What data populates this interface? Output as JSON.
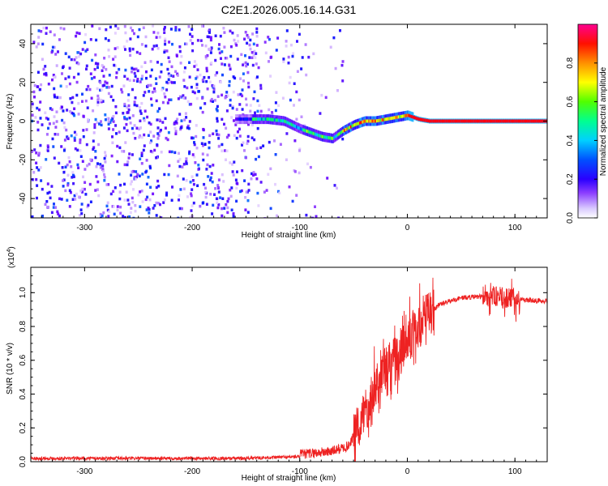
{
  "title": "C2E1.2026.005.16.14.G31",
  "chart_data": [
    {
      "type": "heatmap",
      "xlabel": "Height of straight line (km)",
      "ylabel": "Frequency (Hz)",
      "xlim": [
        -350,
        130
      ],
      "ylim": [
        -50,
        50
      ],
      "xticks": [
        -300,
        -200,
        -100,
        0,
        100
      ],
      "yticks": [
        -40,
        -20,
        0,
        20,
        40
      ],
      "colorbar": {
        "label": "Normalized spectral amplitude",
        "range": [
          0,
          1
        ],
        "ticks": [
          "0.0",
          "0.2",
          "0.4",
          "0.6",
          "0.8"
        ],
        "colors": [
          "#ffffff",
          "#6a00ff",
          "#0000ff",
          "#00ccff",
          "#00ff66",
          "#b0ff00",
          "#ffff00",
          "#ff8800",
          "#ff0000",
          "#ff00aa"
        ]
      },
      "ridge": {
        "x": [
          -145,
          -130,
          -115,
          -100,
          -90,
          -80,
          -70,
          -60,
          -50,
          -40,
          -30,
          -20,
          -10,
          0,
          10,
          20,
          40,
          60,
          80,
          100,
          130
        ],
        "y": [
          1,
          1,
          0,
          -4,
          -6,
          -8,
          -9,
          -5,
          -2,
          0,
          0,
          1,
          2,
          3,
          1,
          0,
          0,
          0,
          0,
          0,
          0
        ]
      }
    },
    {
      "type": "line",
      "series": [
        {
          "name": "SNR",
          "color": "#ee2222"
        }
      ],
      "xlabel": "Height of straight line (km)",
      "ylabel": "SNR (10 * v/v)",
      "ylabel_multiplier": "(x10",
      "ylabel_exponent": "4",
      "xlim": [
        -350,
        130
      ],
      "ylim": [
        0,
        1.15
      ],
      "xticks": [
        -300,
        -200,
        -100,
        0,
        100
      ],
      "yticks": [
        "0.0",
        "0.2",
        "0.4",
        "0.6",
        "0.8",
        "1.0"
      ],
      "profile": {
        "x": [
          -350,
          -250,
          -150,
          -100,
          -70,
          -55,
          -45,
          -40,
          -30,
          -20,
          -10,
          0,
          10,
          20,
          30,
          50,
          80,
          100,
          130
        ],
        "y": [
          0.02,
          0.02,
          0.02,
          0.03,
          0.05,
          0.08,
          0.2,
          0.3,
          0.45,
          0.55,
          0.62,
          0.72,
          0.8,
          0.88,
          0.93,
          0.97,
          0.98,
          0.96,
          0.95
        ]
      }
    }
  ]
}
